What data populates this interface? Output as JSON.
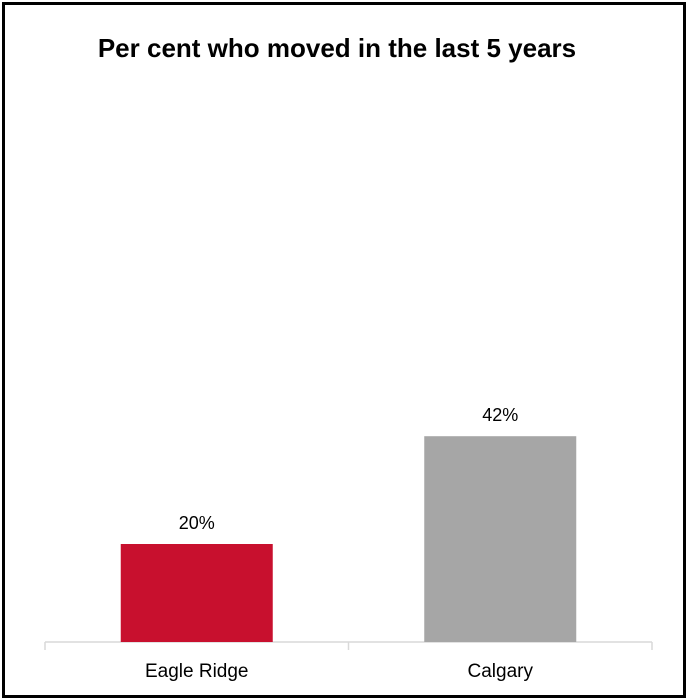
{
  "chart_data": {
    "type": "bar",
    "title": "Per cent who moved in the last 5 years",
    "categories": [
      "Eagle Ridge",
      "Calgary"
    ],
    "values": [
      20,
      42
    ],
    "data_labels": [
      "20%",
      "42%"
    ],
    "bar_colors": [
      "#C8102E",
      "#A6A6A6"
    ],
    "xlabel": "",
    "ylabel": "",
    "ylim": [
      0,
      50
    ],
    "grid": false,
    "legend": "none"
  }
}
